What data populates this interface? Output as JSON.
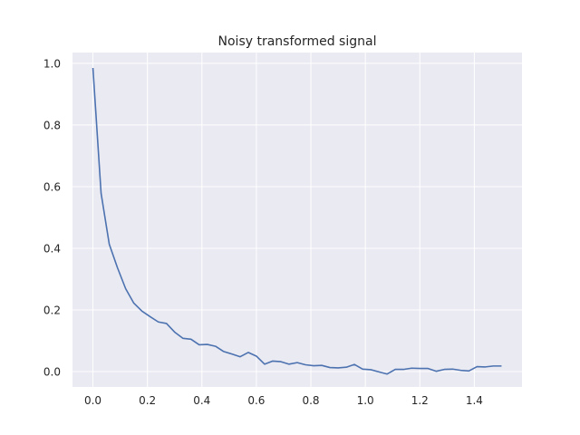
{
  "chart_data": {
    "type": "line",
    "title": "Noisy transformed signal",
    "xlabel": "",
    "ylabel": "",
    "xlim": [
      -0.075,
      1.575
    ],
    "ylim": [
      -0.05,
      1.035
    ],
    "xticks": [
      0.0,
      0.2,
      0.4,
      0.6,
      0.8,
      1.0,
      1.2,
      1.4
    ],
    "xtick_labels": [
      "0.0",
      "0.2",
      "0.4",
      "0.6",
      "0.8",
      "1.0",
      "1.2",
      "1.4"
    ],
    "yticks": [
      0.0,
      0.2,
      0.4,
      0.6,
      0.8,
      1.0
    ],
    "ytick_labels": [
      "0.0",
      "0.2",
      "0.4",
      "0.6",
      "0.8",
      "1.0"
    ],
    "grid": true,
    "colors": {
      "background": "#eaeaf2",
      "grid": "#ffffff",
      "line": "#4c72b0"
    },
    "series": [
      {
        "x": [
          0.0,
          0.03,
          0.06,
          0.09,
          0.12,
          0.15,
          0.18,
          0.21,
          0.24,
          0.27,
          0.3,
          0.33,
          0.36,
          0.39,
          0.42,
          0.45,
          0.48,
          0.51,
          0.54,
          0.57,
          0.6,
          0.63,
          0.66,
          0.69,
          0.72,
          0.75,
          0.78,
          0.81,
          0.84,
          0.87,
          0.9,
          0.93,
          0.96,
          0.99,
          1.02,
          1.05,
          1.08,
          1.11,
          1.14,
          1.17,
          1.2,
          1.23,
          1.26,
          1.29,
          1.32,
          1.35,
          1.38,
          1.41,
          1.44,
          1.47,
          1.5
        ],
        "values": [
          0.985,
          0.578,
          0.413,
          0.337,
          0.269,
          0.222,
          0.196,
          0.178,
          0.161,
          0.156,
          0.128,
          0.108,
          0.105,
          0.087,
          0.088,
          0.082,
          0.065,
          0.057,
          0.048,
          0.062,
          0.05,
          0.024,
          0.034,
          0.032,
          0.024,
          0.029,
          0.022,
          0.019,
          0.02,
          0.013,
          0.012,
          0.014,
          0.023,
          0.008,
          0.006,
          -0.001,
          -0.008,
          0.007,
          0.007,
          0.011,
          0.01,
          0.01,
          0.001,
          0.007,
          0.008,
          0.004,
          0.002,
          0.016,
          0.015,
          0.018,
          0.018
        ]
      }
    ]
  }
}
